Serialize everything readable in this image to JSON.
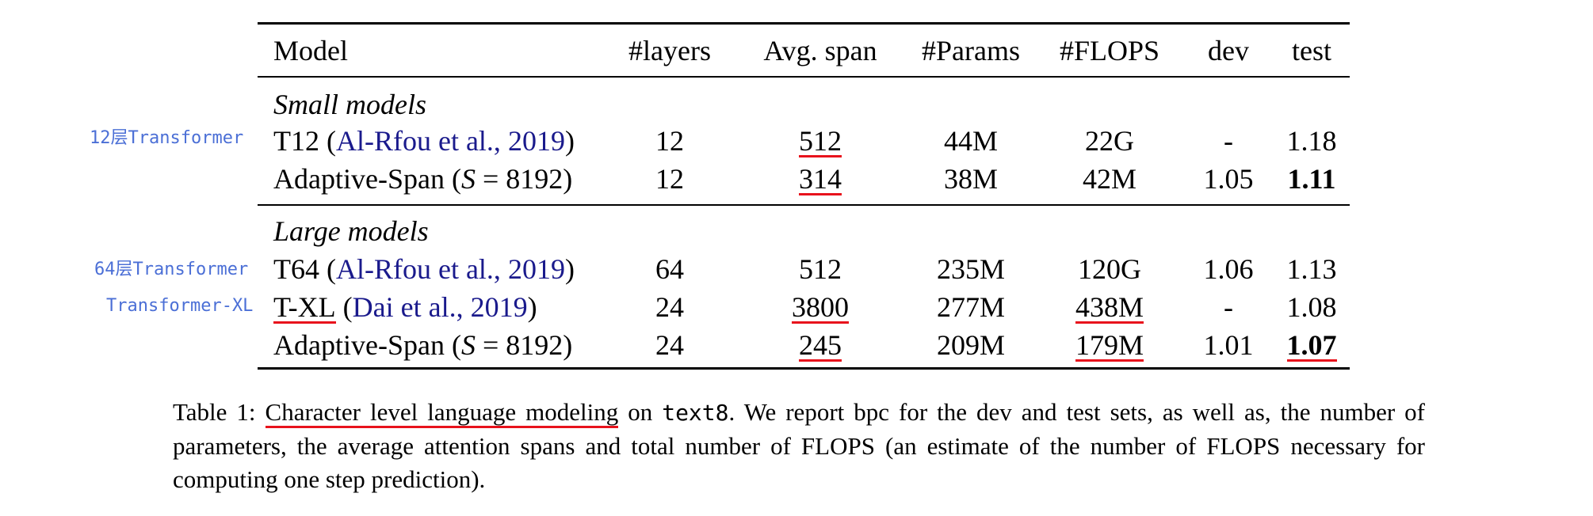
{
  "annotations": {
    "t12_note": "12层Transformer",
    "t64_note": "64层Transformer",
    "txl_note": "Transformer-XL"
  },
  "table": {
    "headers": {
      "model": "Model",
      "layers": "#layers",
      "span": "Avg. span",
      "params": "#Params",
      "flops": "#FLOPS",
      "dev": "dev",
      "test": "test"
    },
    "small_label": "Small models",
    "large_label": "Large models",
    "rows": [
      {
        "name_prefix": "T12 (",
        "cite": "Al-Rfou et al., ",
        "year": "2019",
        "name_suffix": ")",
        "layers": "12",
        "span": "512",
        "params": "44M",
        "flops": "22G",
        "dev": "-",
        "test": "1.18"
      },
      {
        "name": "Adaptive-Span (",
        "math": "S",
        "eq": " = 8192)",
        "layers": "12",
        "span": "314",
        "params": "38M",
        "flops": "42M",
        "dev": "1.05",
        "test": "1.11"
      },
      {
        "name_prefix": "T64 (",
        "cite": "Al-Rfou et al., ",
        "year": "2019",
        "name_suffix": ")",
        "layers": "64",
        "span": "512",
        "params": "235M",
        "flops": "120G",
        "dev": "1.06",
        "test": "1.13"
      },
      {
        "name_prefix": "T-XL",
        "name_mid": " (",
        "cite": "Dai et al., ",
        "year": "2019",
        "name_suffix": ")",
        "layers": "24",
        "span": "3800",
        "params": "277M",
        "flops": "438M",
        "dev": "-",
        "test": "1.08"
      },
      {
        "name": "Adaptive-Span (",
        "math": "S",
        "eq": " = 8192)",
        "layers": "24",
        "span": "245",
        "params": "209M",
        "flops": "179M",
        "dev": "1.01",
        "test": "1.07"
      }
    ]
  },
  "caption": {
    "label": "Table 1: ",
    "underlined": "Character level language modeling",
    "on": " on ",
    "dataset": "text8",
    "rest": ". We report bpc for the dev and test sets, as well as, the number of parameters, the average attention spans and total number of FLOPS (an estimate of the number of FLOPS necessary for computing one step prediction)."
  }
}
